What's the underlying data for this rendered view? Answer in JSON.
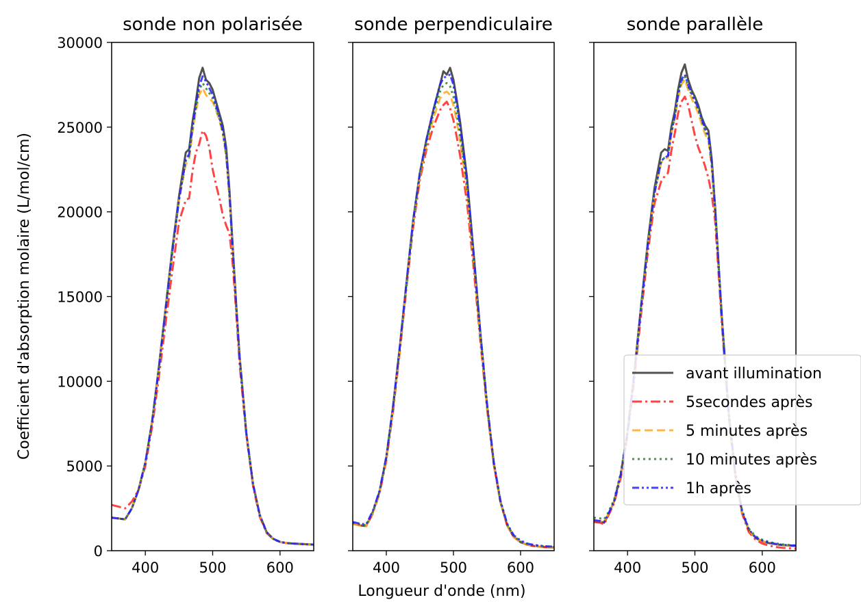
{
  "figure": {
    "xlabel": "Longueur d'onde (nm)",
    "ylabel": "Coefficient d'absorption molaire (L/mol/cm)"
  },
  "chart_data": [
    {
      "type": "line",
      "title": "sonde non polarisée",
      "xlim": [
        350,
        650
      ],
      "ylim": [
        0,
        30000
      ],
      "xticks": [
        400,
        500,
        600
      ],
      "yticks": [
        0,
        5000,
        10000,
        15000,
        20000,
        25000,
        30000
      ],
      "x": [
        350,
        360,
        370,
        380,
        390,
        400,
        410,
        420,
        430,
        440,
        450,
        460,
        465,
        470,
        475,
        480,
        485,
        490,
        495,
        500,
        505,
        510,
        515,
        520,
        525,
        530,
        535,
        540,
        550,
        560,
        570,
        580,
        590,
        600,
        610,
        620,
        630,
        640,
        650
      ],
      "series": [
        {
          "name": "avant illumination",
          "color": "#333333",
          "dash": "solid",
          "values": [
            1950,
            1900,
            1850,
            2500,
            3600,
            5200,
            7600,
            10800,
            14300,
            17800,
            20900,
            23500,
            23700,
            25300,
            26500,
            27900,
            28500,
            27800,
            27600,
            27200,
            26500,
            25800,
            25100,
            23800,
            21200,
            17800,
            14500,
            11500,
            6900,
            3900,
            2100,
            1100,
            700,
            520,
            450,
            420,
            400,
            380,
            360
          ]
        },
        {
          "name": "5secondes après",
          "color": "#ff2222",
          "dash": "dashdot",
          "values": [
            2700,
            2600,
            2500,
            2900,
            3600,
            5000,
            7300,
            10200,
            13400,
            16500,
            19400,
            20700,
            20800,
            22400,
            23500,
            24000,
            24800,
            24500,
            23800,
            22500,
            21600,
            20800,
            19800,
            19200,
            18700,
            16800,
            14000,
            11000,
            6800,
            3800,
            2000,
            1050,
            680,
            510,
            450,
            420,
            400,
            380,
            360
          ]
        },
        {
          "name": "5 minutes après",
          "color": "#ffaa22",
          "dash": "dashed",
          "values": [
            1950,
            1900,
            1850,
            2500,
            3600,
            5200,
            7600,
            10700,
            14200,
            17600,
            20700,
            22800,
            23100,
            24700,
            25900,
            26900,
            27300,
            26900,
            26700,
            26500,
            26000,
            25400,
            24600,
            23300,
            20800,
            17500,
            14300,
            11400,
            6900,
            3900,
            2100,
            1100,
            700,
            520,
            450,
            420,
            400,
            380,
            360
          ]
        },
        {
          "name": "10 minutes après",
          "color": "#228822",
          "dash": "dotted",
          "values": [
            1950,
            1900,
            1850,
            2500,
            3600,
            5200,
            7600,
            10700,
            14200,
            17600,
            20700,
            23000,
            23300,
            24900,
            26100,
            27200,
            27600,
            27300,
            27000,
            26700,
            26100,
            25500,
            24700,
            23400,
            20900,
            17600,
            14400,
            11400,
            6900,
            3900,
            2100,
            1100,
            700,
            520,
            450,
            420,
            400,
            380,
            360
          ]
        },
        {
          "name": "1h après",
          "color": "#2222ff",
          "dash": "dashdotdot",
          "values": [
            1950,
            1900,
            1850,
            2500,
            3600,
            5200,
            7600,
            10700,
            14200,
            17600,
            20700,
            23100,
            23400,
            25000,
            26300,
            27400,
            28000,
            27700,
            27300,
            26900,
            26300,
            25600,
            24800,
            23500,
            21000,
            17600,
            14400,
            11400,
            6900,
            3900,
            2100,
            1100,
            700,
            520,
            450,
            420,
            400,
            380,
            360
          ]
        }
      ]
    },
    {
      "type": "line",
      "title": "sonde perpendiculaire",
      "xlim": [
        350,
        650
      ],
      "ylim": [
        0,
        30000
      ],
      "xticks": [
        400,
        500,
        600
      ],
      "yticks": [
        0,
        5000,
        10000,
        15000,
        20000,
        25000,
        30000
      ],
      "x": [
        350,
        360,
        370,
        380,
        390,
        400,
        410,
        420,
        430,
        440,
        450,
        460,
        470,
        480,
        485,
        490,
        495,
        500,
        505,
        510,
        520,
        530,
        540,
        550,
        560,
        570,
        580,
        590,
        600,
        610,
        620,
        630,
        640,
        650
      ],
      "series": [
        {
          "name": "avant illumination",
          "color": "#333333",
          "dash": "solid",
          "values": [
            1600,
            1500,
            1450,
            2300,
            3500,
            5500,
            8500,
            12000,
            15800,
            19500,
            22300,
            24300,
            26000,
            27500,
            28300,
            28100,
            28500,
            27800,
            26600,
            25300,
            22100,
            17600,
            12900,
            8600,
            5200,
            2900,
            1500,
            800,
            500,
            350,
            280,
            230,
            200,
            180
          ]
        },
        {
          "name": "5secondes après",
          "color": "#ff2222",
          "dash": "dashdot",
          "values": [
            1600,
            1500,
            1450,
            2200,
            3400,
            5300,
            8200,
            11700,
            15500,
            19100,
            21900,
            23700,
            25000,
            26000,
            26300,
            26500,
            26100,
            25400,
            24400,
            23300,
            20600,
            16700,
            12400,
            8400,
            5100,
            2850,
            1500,
            800,
            500,
            350,
            280,
            230,
            200,
            180
          ]
        },
        {
          "name": "5 minutes après",
          "color": "#ffaa22",
          "dash": "dashed",
          "values": [
            1600,
            1500,
            1450,
            2250,
            3450,
            5400,
            8300,
            11800,
            15600,
            19300,
            22100,
            24000,
            25500,
            26700,
            27000,
            27100,
            26900,
            26300,
            25300,
            24200,
            21300,
            17100,
            12600,
            8500,
            5150,
            2870,
            1500,
            800,
            500,
            350,
            280,
            230,
            200,
            180
          ]
        },
        {
          "name": "10 minutes après",
          "color": "#228822",
          "dash": "dotted",
          "values": [
            1650,
            1550,
            1500,
            2300,
            3500,
            5500,
            8400,
            11900,
            15700,
            19400,
            22200,
            24100,
            25800,
            27100,
            27500,
            27600,
            27400,
            26800,
            25700,
            24500,
            21500,
            17200,
            12700,
            8600,
            5200,
            2900,
            1550,
            850,
            550,
            400,
            320,
            270,
            240,
            220
          ]
        },
        {
          "name": "1h après",
          "color": "#2222ff",
          "dash": "dashdotdot",
          "values": [
            1700,
            1600,
            1550,
            2350,
            3550,
            5550,
            8500,
            12000,
            15800,
            19500,
            22300,
            24300,
            26000,
            27500,
            27900,
            28000,
            28100,
            27500,
            26300,
            25000,
            21900,
            17500,
            12900,
            8700,
            5250,
            2950,
            1600,
            900,
            600,
            420,
            340,
            290,
            260,
            240
          ]
        }
      ]
    },
    {
      "type": "line",
      "title": "sonde parallèle",
      "xlim": [
        350,
        650
      ],
      "ylim": [
        0,
        30000
      ],
      "xticks": [
        400,
        500,
        600
      ],
      "yticks": [
        0,
        5000,
        10000,
        15000,
        20000,
        25000,
        30000
      ],
      "x": [
        350,
        360,
        365,
        370,
        380,
        390,
        400,
        410,
        420,
        430,
        440,
        450,
        455,
        460,
        465,
        470,
        475,
        480,
        485,
        490,
        495,
        500,
        505,
        510,
        515,
        520,
        525,
        530,
        540,
        550,
        560,
        570,
        580,
        590,
        600,
        610,
        620,
        630,
        640,
        650
      ],
      "series": [
        {
          "name": "avant illumination",
          "color": "#333333",
          "dash": "solid",
          "values": [
            1700,
            1700,
            1650,
            2000,
            2900,
            4500,
            7000,
            10500,
            14400,
            18200,
            21400,
            23500,
            23700,
            23600,
            25000,
            25900,
            27200,
            28200,
            28700,
            27800,
            27200,
            26800,
            26300,
            25600,
            25100,
            24800,
            23100,
            20300,
            13800,
            8200,
            4500,
            2300,
            1200,
            750,
            550,
            450,
            380,
            330,
            300,
            280
          ]
        },
        {
          "name": "5secondes après",
          "color": "#ff2222",
          "dash": "dashdot",
          "values": [
            1700,
            1650,
            1550,
            1950,
            2800,
            4300,
            6800,
            10100,
            13900,
            17600,
            20500,
            21800,
            22100,
            22300,
            23600,
            24600,
            25800,
            26500,
            26800,
            26300,
            25400,
            24500,
            23800,
            23300,
            22700,
            22000,
            21000,
            19500,
            13400,
            8000,
            4400,
            2200,
            1100,
            650,
            420,
            300,
            220,
            170,
            140,
            120
          ]
        },
        {
          "name": "5 minutes après",
          "color": "#ffaa22",
          "dash": "dashed",
          "values": [
            1800,
            1750,
            1700,
            2050,
            2900,
            4500,
            7000,
            10400,
            14300,
            18000,
            21100,
            22900,
            23100,
            23200,
            24600,
            25500,
            26700,
            27500,
            27800,
            27200,
            26700,
            26300,
            25800,
            25200,
            24600,
            24200,
            22600,
            20000,
            13700,
            8100,
            4500,
            2300,
            1200,
            760,
            560,
            460,
            390,
            340,
            310,
            290
          ]
        },
        {
          "name": "10 minutes après",
          "color": "#228822",
          "dash": "dotted",
          "values": [
            1950,
            1900,
            1850,
            2150,
            3000,
            4600,
            7100,
            10500,
            14400,
            18100,
            21200,
            23000,
            23200,
            23300,
            24700,
            25600,
            26900,
            27700,
            28000,
            27400,
            26900,
            26500,
            26000,
            25400,
            24800,
            24400,
            22800,
            20100,
            13800,
            8200,
            4600,
            2400,
            1300,
            850,
            650,
            520,
            430,
            370,
            340,
            310
          ]
        },
        {
          "name": "1h après",
          "color": "#2222ff",
          "dash": "dashdotdot",
          "values": [
            1800,
            1750,
            1700,
            2050,
            2900,
            4500,
            7000,
            10400,
            14300,
            18000,
            21100,
            23000,
            23200,
            23300,
            24700,
            25600,
            26900,
            27800,
            28100,
            27500,
            27000,
            26600,
            26100,
            25500,
            24900,
            24500,
            22900,
            20200,
            13800,
            8150,
            4550,
            2350,
            1250,
            800,
            600,
            480,
            400,
            350,
            320,
            300
          ]
        }
      ]
    }
  ]
}
